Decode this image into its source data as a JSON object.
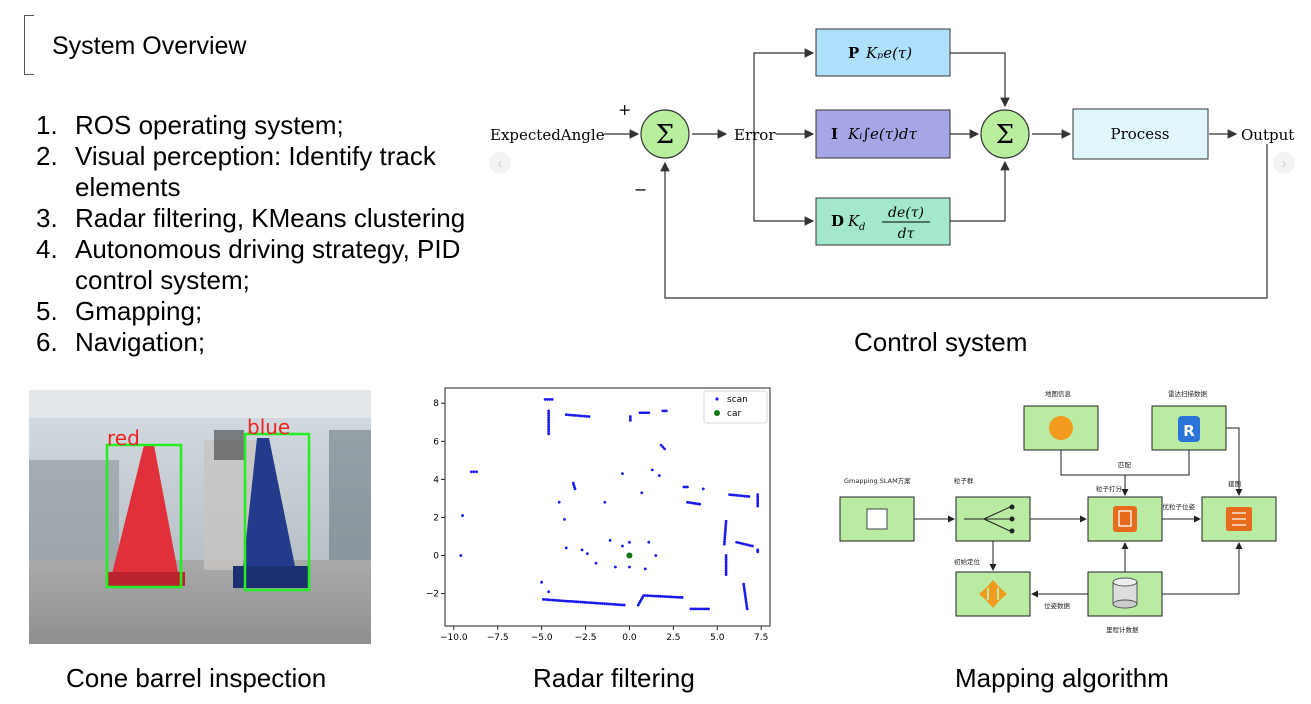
{
  "slide": {
    "title": "System Overview",
    "items": [
      {
        "num": "1.",
        "text": "ROS operating system;"
      },
      {
        "num": "2.",
        "text": "Visual perception: Identify track elements"
      },
      {
        "num": "3.",
        "text": "Radar filtering, KMeans clustering"
      },
      {
        "num": "4.",
        "text": "Autonomous driving strategy, PID control system;"
      },
      {
        "num": "5.",
        "text": "Gmapping;"
      },
      {
        "num": "6.",
        "text": "Navigation;"
      }
    ]
  },
  "captions": {
    "control": "Control system",
    "cone": "Cone barrel inspection",
    "radar": "Radar filtering",
    "mapping": "Mapping algorithm"
  },
  "pid": {
    "input": "ExpectedAngle",
    "plus": "+",
    "minus": "−",
    "sum": "Σ",
    "error": "Error",
    "p_letter": "P",
    "p_expr": "Kₚe(τ)",
    "i_letter": "I",
    "i_expr": "Kᵢ∫e(τ)dτ",
    "d_letter": "D",
    "d_expr_k": "K",
    "d_expr_sub": "d",
    "d_num": "de(τ)",
    "d_den": "dτ",
    "process": "Process",
    "output": "Output",
    "colors": {
      "p": "#aee0fb",
      "i": "#a6a6e6",
      "d": "#a3e8cc",
      "sum": "#b8ee9c",
      "process": "#dff6fb"
    }
  },
  "cone_photo": {
    "red_label": "red",
    "blue_label": "blue",
    "box_color": "#22ee22"
  },
  "chart_data": {
    "type": "scatter",
    "xlim": [
      -10.5,
      8
    ],
    "ylim": [
      -3.7,
      8.8
    ],
    "xticks": [
      "−10.0",
      "−7.5",
      "−5.0",
      "−2.5",
      "0.0",
      "2.5",
      "5.0",
      "7.5"
    ],
    "xtick_values": [
      -10,
      -7.5,
      -5,
      -2.5,
      0,
      2.5,
      5,
      7.5
    ],
    "yticks": [
      "−2",
      "0",
      "2",
      "4",
      "6",
      "8"
    ],
    "ytick_values": [
      -2,
      0,
      2,
      4,
      6,
      8
    ],
    "legend": [
      {
        "name": "scan",
        "color": "#1a1aee"
      },
      {
        "name": "car",
        "color": "#117711"
      }
    ],
    "legend_position": "top-right",
    "series": [
      {
        "name": "scan",
        "segments": [
          [
            [
              -4.8,
              8.2
            ],
            [
              -4.4,
              8.2
            ]
          ],
          [
            [
              -3.6,
              7.4
            ],
            [
              -2.3,
              7.3
            ]
          ],
          [
            [
              -4.6,
              7.6
            ],
            [
              -4.6,
              6.4
            ]
          ],
          [
            [
              0.6,
              7.5
            ],
            [
              1.1,
              7.5
            ]
          ],
          [
            [
              1.9,
              7.6
            ],
            [
              2.1,
              7.6
            ]
          ],
          [
            [
              0.05,
              7.3
            ],
            [
              0.05,
              7.1
            ]
          ],
          [
            [
              1.8,
              5.8
            ],
            [
              2.0,
              5.6
            ]
          ],
          [
            [
              -9,
              4.4
            ],
            [
              -8.7,
              4.4
            ]
          ],
          [
            [
              -3.2,
              3.8
            ],
            [
              -3.1,
              3.5
            ]
          ],
          [
            [
              3.1,
              3.6
            ],
            [
              3.3,
              3.6
            ]
          ],
          [
            [
              3.3,
              2.8
            ],
            [
              4.0,
              2.7
            ]
          ],
          [
            [
              5.7,
              3.2
            ],
            [
              6.8,
              3.1
            ]
          ],
          [
            [
              7.3,
              3.2
            ],
            [
              7.3,
              2.6
            ]
          ],
          [
            [
              -4.9,
              -2.3
            ],
            [
              -3.5,
              -2.4
            ]
          ],
          [
            [
              -3.4,
              -2.4
            ],
            [
              -0.3,
              -2.6
            ]
          ],
          [
            [
              0.5,
              -2.6
            ],
            [
              0.8,
              -2.1
            ]
          ],
          [
            [
              0.9,
              -2.1
            ],
            [
              3.0,
              -2.2
            ]
          ],
          [
            [
              3.5,
              -2.8
            ],
            [
              4.5,
              -2.8
            ]
          ],
          [
            [
              5.5,
              1.8
            ],
            [
              5.4,
              0.6
            ]
          ],
          [
            [
              5.5,
              0.0
            ],
            [
              5.5,
              -1.0
            ]
          ],
          [
            [
              6.1,
              0.7
            ],
            [
              7.0,
              0.5
            ]
          ],
          [
            [
              6.5,
              -1.5
            ],
            [
              6.7,
              -2.8
            ]
          ],
          [
            [
              7.3,
              0.3
            ],
            [
              7.3,
              0.2
            ]
          ]
        ],
        "points": [
          [
            -9.5,
            2.1
          ],
          [
            -9.6,
            0.0
          ],
          [
            -5.0,
            -1.4
          ],
          [
            -4.6,
            -1.9
          ],
          [
            -4.0,
            2.8
          ],
          [
            -3.7,
            1.9
          ],
          [
            -3.6,
            0.4
          ],
          [
            -2.7,
            0.3
          ],
          [
            -2.4,
            0.1
          ],
          [
            -1.9,
            -0.4
          ],
          [
            -1.1,
            0.8
          ],
          [
            -1.4,
            2.8
          ],
          [
            -0.8,
            -0.6
          ],
          [
            -0.4,
            4.3
          ],
          [
            0.7,
            3.3
          ],
          [
            1.3,
            4.5
          ],
          [
            1.7,
            4.2
          ],
          [
            1.1,
            0.7
          ],
          [
            1.5,
            0.0
          ],
          [
            0.9,
            -0.7
          ],
          [
            0.0,
            0.7
          ],
          [
            0.0,
            -0.6
          ],
          [
            -0.4,
            0.5
          ],
          [
            4.2,
            3.5
          ]
        ]
      },
      {
        "name": "car",
        "points": [
          [
            0.0,
            0.0
          ]
        ]
      }
    ]
  },
  "mapping": {
    "title": "Gmapping SLAM方案",
    "map_info": "地图信息",
    "radar_data": "雷达扫描数据",
    "match": "匹配",
    "particles": "粒子群",
    "scoring": "粒子打分",
    "best_pose": "最优粒子位姿",
    "build_map": "建图",
    "init_pose": "初始定位",
    "pose_data": "位姿数据",
    "odometry": "里程计数据",
    "box_fill": "#b9eba3"
  }
}
